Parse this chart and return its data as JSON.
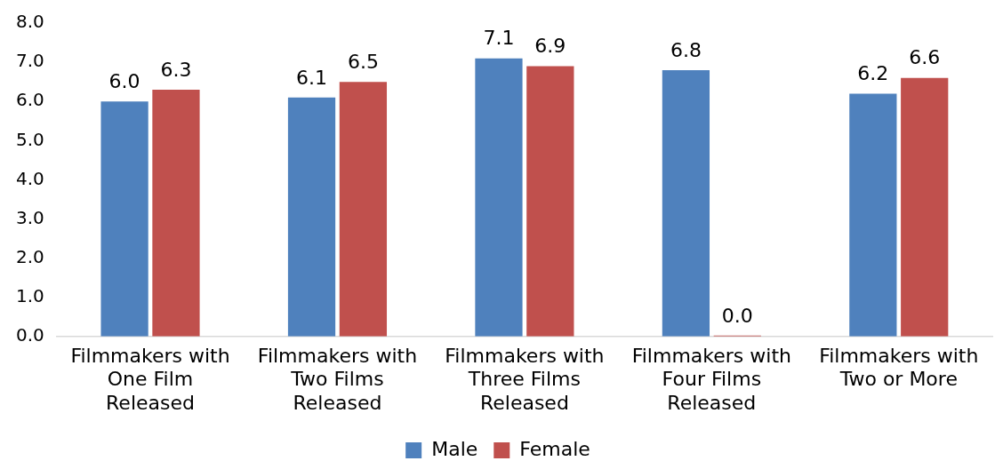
{
  "chart_data": {
    "type": "bar",
    "categories": [
      "Filmmakers with One Film Released",
      "Filmmakers with Two Films Released",
      "Filmmakers with Three Films Released",
      "Filmmakers with Four Films Released",
      "Filmmakers with Two or More"
    ],
    "series": [
      {
        "name": "Male",
        "color": "#4f81bd",
        "values": [
          6.0,
          6.1,
          7.1,
          6.8,
          6.2
        ],
        "value_labels": [
          "6.0",
          "6.1",
          "7.1",
          "6.8",
          "6.2"
        ]
      },
      {
        "name": "Female",
        "color": "#c0504d",
        "values": [
          6.3,
          6.5,
          6.9,
          0.0,
          6.6
        ],
        "value_labels": [
          "6.3",
          "6.5",
          "6.9",
          "0.0",
          "6.6"
        ]
      }
    ],
    "ylim": [
      0,
      8
    ],
    "yticks": [
      {
        "value": 0,
        "label": "0.0"
      },
      {
        "value": 1,
        "label": "1.0"
      },
      {
        "value": 2,
        "label": "2.0"
      },
      {
        "value": 3,
        "label": "3.0"
      },
      {
        "value": 4,
        "label": "4.0"
      },
      {
        "value": 5,
        "label": "5.0"
      },
      {
        "value": 6,
        "label": "6.0"
      },
      {
        "value": 7,
        "label": "7.0"
      },
      {
        "value": 8,
        "label": "8.0"
      }
    ],
    "grid": false,
    "legend": "bottom"
  }
}
